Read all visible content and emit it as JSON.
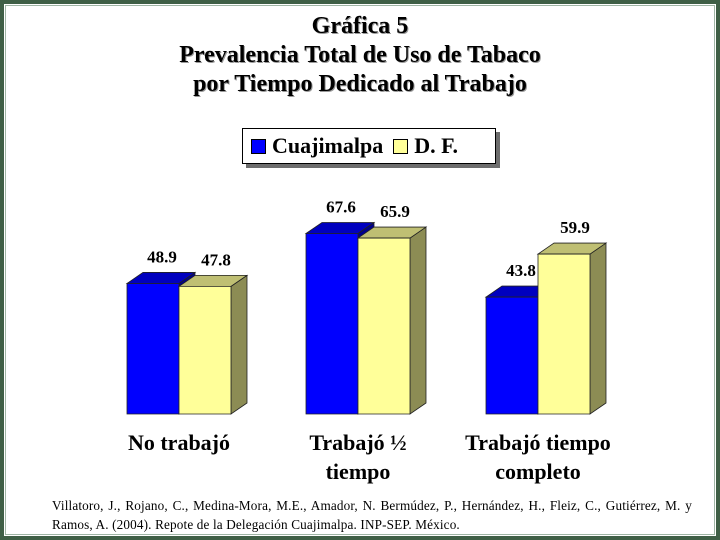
{
  "title_lines": [
    "Gráfica 5",
    "Prevalencia Total de Uso de Tabaco",
    "por Tiempo Dedicado al Trabajo"
  ],
  "legend": [
    {
      "name": "Cuajimalpa",
      "color": "#0000ff"
    },
    {
      "name": "D. F.",
      "color": "#ffff99"
    }
  ],
  "chart_data": {
    "type": "bar",
    "title": "Gráfica 5 Prevalencia Total de Uso de Tabaco por Tiempo Dedicado al Trabajo",
    "categories": [
      "No trabajó",
      "Trabajó ½ tiempo",
      "Trabajó tiempo completo"
    ],
    "category_lines": [
      [
        "No trabajó"
      ],
      [
        "Trabajó ½",
        "tiempo"
      ],
      [
        "Trabajó tiempo",
        "completo"
      ]
    ],
    "series": [
      {
        "name": "Cuajimalpa",
        "values": [
          48.9,
          67.6,
          43.8
        ],
        "color": "#0000ff"
      },
      {
        "name": "D. F.",
        "values": [
          47.8,
          65.9,
          59.9
        ],
        "color": "#ffff99"
      }
    ],
    "ylim": [
      0,
      100
    ],
    "grid": false,
    "legend_position": "top-center",
    "style": "3d-bars"
  },
  "source": "Villatoro, J., Rojano, C., Medina-Mora, M.E., Amador, N. Bermúdez, P., Hernández, H., Fleiz, C., Gutiérrez, M. y Ramos, A. (2004). Repote de la Delegación Cuajimalpa. INP-SEP. México."
}
